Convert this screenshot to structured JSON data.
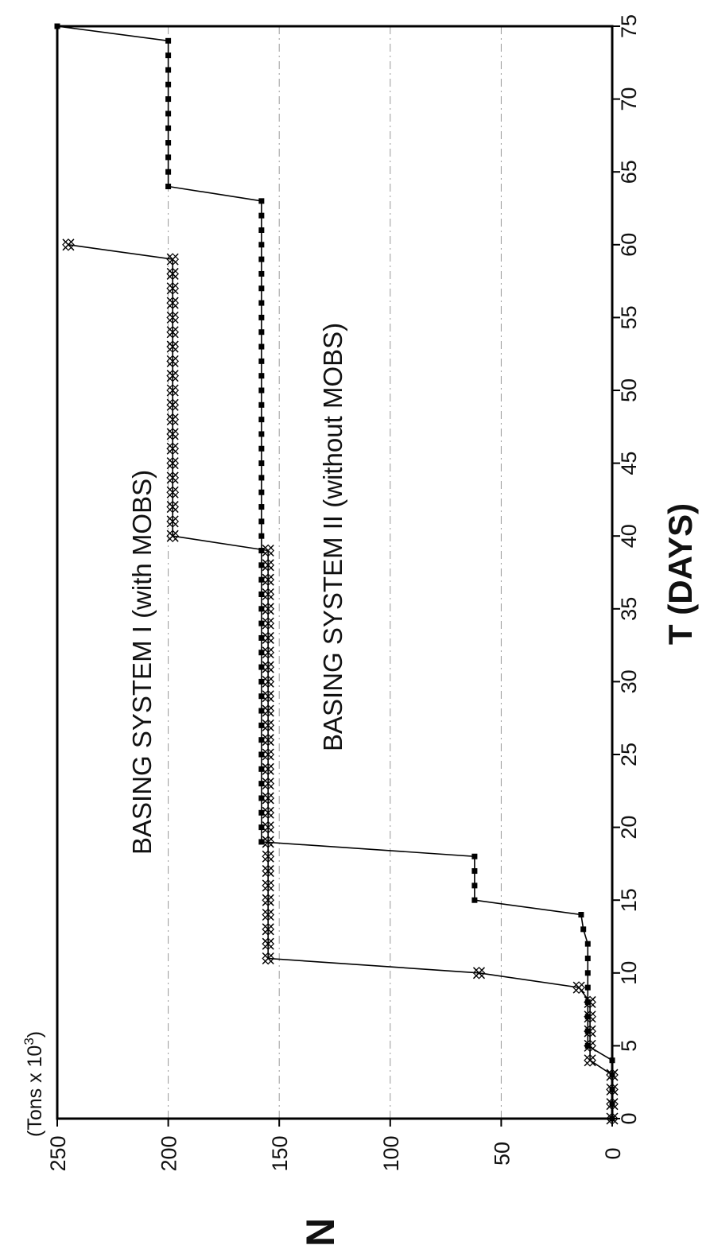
{
  "chart_data": {
    "type": "line",
    "title": "",
    "xlabel": "T (DAYS)",
    "ylabel": "N",
    "units": "(Tons x 10",
    "units_exp": "3",
    "units_close": ")",
    "xlim": [
      0,
      75
    ],
    "ylim": [
      0,
      250
    ],
    "x_ticks": [
      0,
      5,
      10,
      15,
      20,
      25,
      30,
      35,
      40,
      45,
      50,
      55,
      60,
      65,
      70,
      75
    ],
    "y_ticks": [
      0,
      50,
      100,
      150,
      200,
      250
    ],
    "grid": true,
    "series": [
      {
        "name": "BASING SYSTEM I (with MOBS)",
        "marker": "x-diamond",
        "x": [
          0,
          1,
          2,
          3,
          4,
          5,
          6,
          7,
          8,
          9,
          10,
          11,
          12,
          13,
          14,
          15,
          16,
          17,
          18,
          19,
          20,
          21,
          22,
          23,
          24,
          25,
          26,
          27,
          28,
          29,
          30,
          31,
          32,
          33,
          34,
          35,
          36,
          37,
          38,
          39,
          40,
          41,
          42,
          43,
          44,
          45,
          46,
          47,
          48,
          49,
          50,
          51,
          52,
          53,
          54,
          55,
          56,
          57,
          58,
          59,
          60
        ],
        "y": [
          0,
          0,
          0,
          0,
          10,
          10,
          10,
          10,
          10,
          15,
          60,
          155,
          155,
          155,
          155,
          155,
          155,
          155,
          155,
          155,
          155,
          155,
          155,
          155,
          155,
          155,
          155,
          155,
          155,
          155,
          155,
          155,
          155,
          155,
          155,
          155,
          155,
          155,
          155,
          155,
          198,
          198,
          198,
          198,
          198,
          198,
          198,
          198,
          198,
          198,
          198,
          198,
          198,
          198,
          198,
          198,
          198,
          198,
          198,
          198,
          245
        ]
      },
      {
        "name": "BASING SYSTEM II (without MOBS)",
        "marker": "dot",
        "x": [
          0,
          1,
          2,
          3,
          4,
          5,
          6,
          7,
          8,
          9,
          10,
          11,
          12,
          13,
          14,
          15,
          16,
          17,
          18,
          19,
          20,
          21,
          22,
          23,
          24,
          25,
          26,
          27,
          28,
          29,
          30,
          31,
          32,
          33,
          34,
          35,
          36,
          37,
          38,
          39,
          40,
          41,
          42,
          43,
          44,
          45,
          46,
          47,
          48,
          49,
          50,
          51,
          52,
          53,
          54,
          55,
          56,
          57,
          58,
          59,
          60,
          61,
          62,
          63,
          64,
          65,
          66,
          67,
          68,
          69,
          70,
          71,
          72,
          73,
          74,
          75
        ],
        "y": [
          0,
          0,
          0,
          0,
          0,
          11,
          11,
          11,
          11,
          11,
          11,
          11,
          11,
          13,
          14,
          62,
          62,
          62,
          62,
          158,
          158,
          158,
          158,
          158,
          158,
          158,
          158,
          158,
          158,
          158,
          158,
          158,
          158,
          158,
          158,
          158,
          158,
          158,
          158,
          158,
          158,
          158,
          158,
          158,
          158,
          158,
          158,
          158,
          158,
          158,
          158,
          158,
          158,
          158,
          158,
          158,
          158,
          158,
          158,
          158,
          158,
          158,
          158,
          158,
          200,
          200,
          200,
          200,
          200,
          200,
          200,
          200,
          200,
          200,
          200,
          250
        ]
      }
    ]
  }
}
